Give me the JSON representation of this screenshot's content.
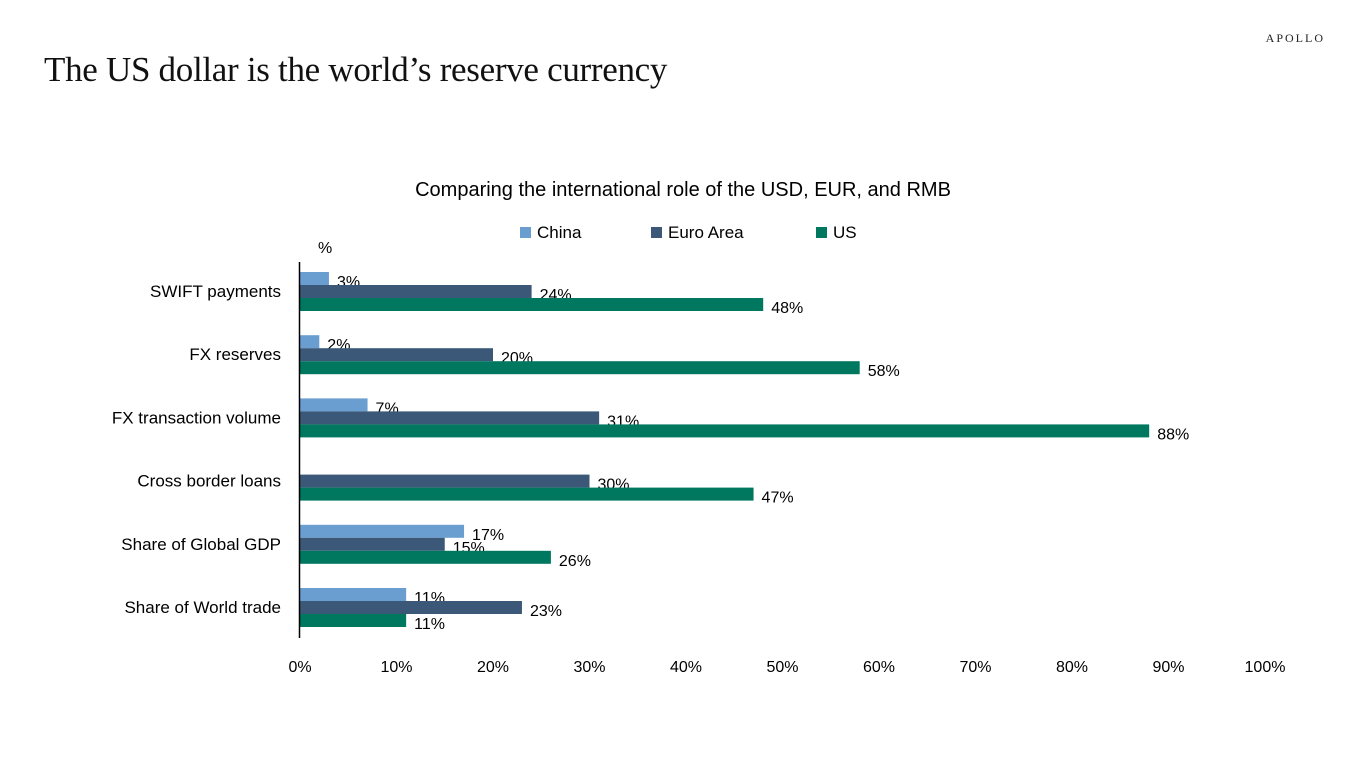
{
  "brand": "APOLLO",
  "slide_title": "The US dollar is the world’s reserve currency",
  "colors": {
    "China": "#6a9ed0",
    "Euro Area": "#3b5878",
    "US": "#00775f"
  },
  "chart_data": {
    "type": "bar",
    "orientation": "horizontal",
    "title": "Comparing the international role of the USD, EUR, and RMB",
    "unit_label": "%",
    "categories": [
      "SWIFT payments",
      "FX reserves",
      "FX transaction volume",
      "Cross border loans",
      "Share of Global GDP",
      "Share of World trade"
    ],
    "series": [
      {
        "name": "China",
        "values": [
          3,
          2,
          7,
          null,
          17,
          11
        ],
        "labels": [
          "3%",
          "2%",
          "7%",
          "",
          "17%",
          "11%"
        ]
      },
      {
        "name": "Euro Area",
        "values": [
          24,
          20,
          31,
          30,
          15,
          23
        ],
        "labels": [
          "24%",
          "20%",
          "31%",
          "30%",
          "15%",
          "23%"
        ]
      },
      {
        "name": "US",
        "values": [
          48,
          58,
          88,
          47,
          26,
          11
        ],
        "labels": [
          "48%",
          "58%",
          "88%",
          "47%",
          "26%",
          "11%"
        ]
      }
    ],
    "xlim": [
      0,
      100
    ],
    "xticks": [
      0,
      10,
      20,
      30,
      40,
      50,
      60,
      70,
      80,
      90,
      100
    ],
    "xtick_labels": [
      "0%",
      "10%",
      "20%",
      "30%",
      "40%",
      "50%",
      "60%",
      "70%",
      "80%",
      "90%",
      "100%"
    ],
    "grid": false,
    "legend_position": "top"
  }
}
